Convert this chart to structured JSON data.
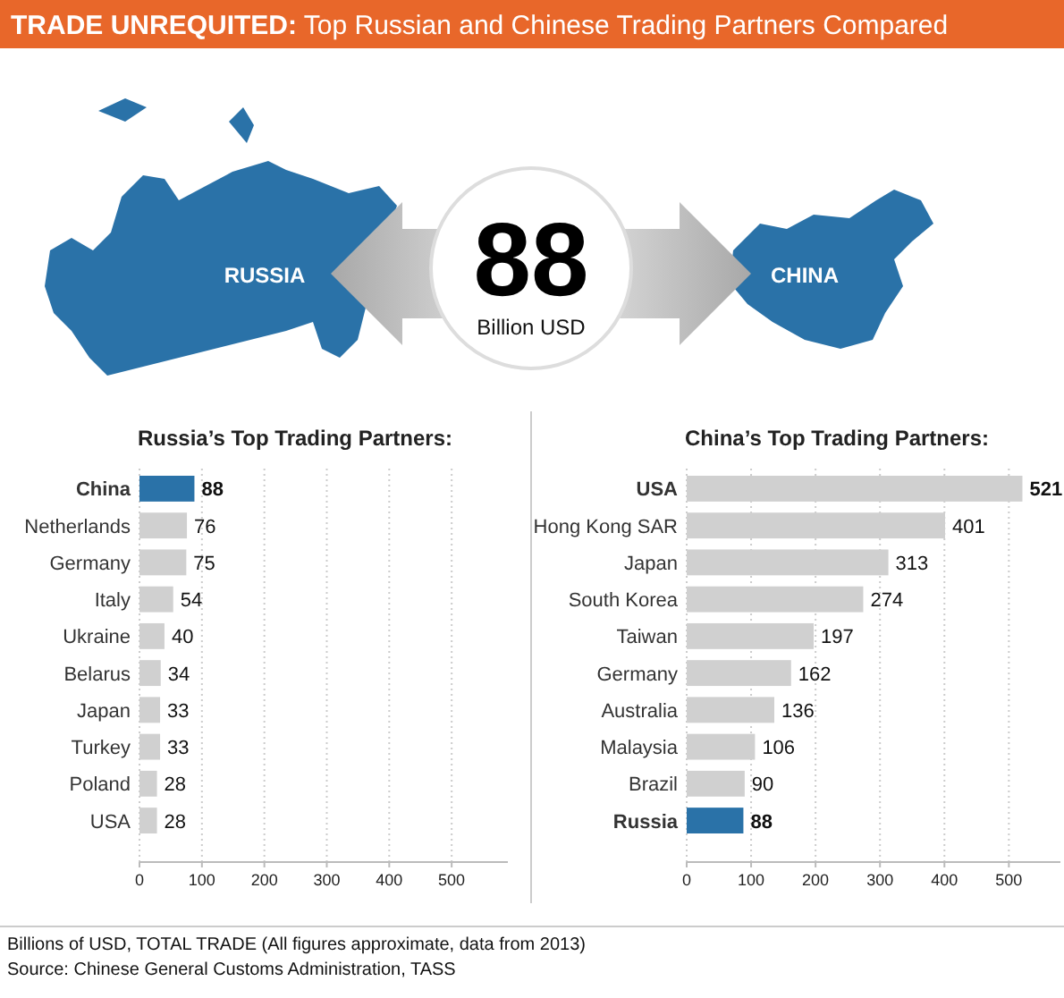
{
  "chart_data": [
    {
      "type": "other",
      "title": "TRADE UNREQUITED:",
      "subtitle": "Top Russian and Chinese Trading Partners Compared",
      "annotations": [
        "RUSSIA",
        "88",
        "Billion USD",
        "CHINA",
        "Billions of USD, TOTAL TRADE (All figures approximate, data from 2013)",
        "Source: Chinese General Customs Administration, TASS"
      ]
    },
    {
      "type": "bar",
      "orientation": "horizontal",
      "title": "Russia’s Top Trading Partners:",
      "categories": [
        "China",
        "Netherlands",
        "Germany",
        "Italy",
        "Ukraine",
        "Belarus",
        "Japan",
        "Turkey",
        "Poland",
        "USA"
      ],
      "values": [
        88,
        76,
        75,
        54,
        40,
        34,
        33,
        33,
        28,
        28
      ],
      "colors": [
        "#2a72a8",
        "#d0d0d0",
        "#d0d0d0",
        "#d0d0d0",
        "#d0d0d0",
        "#d0d0d0",
        "#d0d0d0",
        "#d0d0d0",
        "#d0d0d0",
        "#d0d0d0"
      ],
      "xlim": [
        0,
        590
      ],
      "xticks": [
        0,
        100,
        200,
        300,
        400,
        500
      ],
      "grid": "x",
      "data_labels": true
    },
    {
      "type": "bar",
      "orientation": "horizontal",
      "title": "China’s Top Trading Partners:",
      "categories": [
        "USA",
        "Hong Kong SAR",
        "Japan",
        "South Korea",
        "Taiwan",
        "Germany",
        "Australia",
        "Malaysia",
        "Brazil",
        "Russia"
      ],
      "values": [
        521,
        401,
        313,
        274,
        197,
        162,
        136,
        106,
        90,
        88
      ],
      "colors": [
        "#d0d0d0",
        "#d0d0d0",
        "#d0d0d0",
        "#d0d0d0",
        "#d0d0d0",
        "#d0d0d0",
        "#d0d0d0",
        "#d0d0d0",
        "#d0d0d0",
        "#2a72a8"
      ],
      "xlim": [
        0,
        580
      ],
      "xticks": [
        0,
        100,
        200,
        300,
        400,
        500
      ],
      "grid": "x",
      "data_labels": true
    }
  ]
}
